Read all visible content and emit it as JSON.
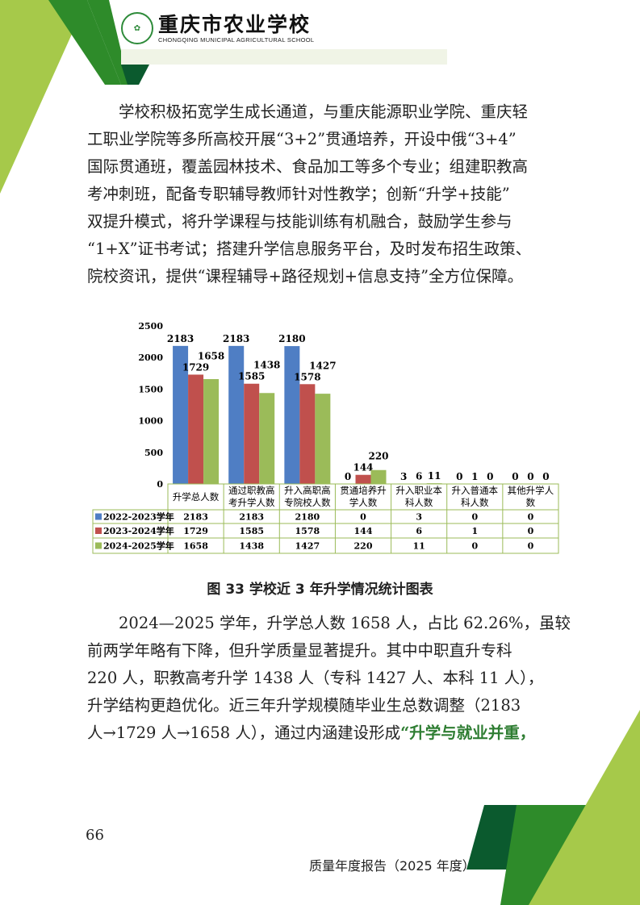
{
  "header": {
    "school_cn": "重庆市农业学校",
    "school_en": "CHONGQING MUNICIPAL AGRICULTURAL SCHOOL"
  },
  "para1": [
    "学校积极拓宽学生成长通道，与重庆能源职业学院、重庆轻",
    "工职业学院等多所高校开展“3+2”贯通培养，开设中俄“3+4”",
    "国际贯通班，覆盖园林技术、食品加工等多个专业；组建职教高",
    "考冲刺班，配备专职辅导教师针对性教学；创新“升学+技能”",
    "双提升模式，将升学课程与技能训练有机融合，鼓励学生参与",
    "“1+X”证书考试；搭建升学信息服务平台，及时发布招生政策、",
    "院校资讯，提供“课程辅导+路径规划+信息支持”全方位保障。"
  ],
  "chart_data": {
    "type": "bar",
    "categories": [
      "升学总人数",
      "通过职教高考升学人数",
      "升入高职高专院校人数",
      "贯通培养升学人数",
      "升入职业本科人数",
      "升入普通本科人数",
      "其他升学人数"
    ],
    "category_lines": [
      [
        "升学总人数"
      ],
      [
        "通过职教高",
        "考升学人数"
      ],
      [
        "升入高职高",
        "专院校人数"
      ],
      [
        "贯通培养升",
        "学人数"
      ],
      [
        "升入职业本",
        "科人数"
      ],
      [
        "升入普通本",
        "科人数"
      ],
      [
        "其他升学人",
        "数"
      ]
    ],
    "series": [
      {
        "name": "2022-2023学年",
        "color": "#4f7ec4",
        "values": [
          2183,
          2183,
          2180,
          0,
          3,
          0,
          0
        ]
      },
      {
        "name": "2023-2024学年",
        "color": "#c0504d",
        "values": [
          1729,
          1585,
          1578,
          144,
          6,
          1,
          0
        ]
      },
      {
        "name": "2024-2025学年",
        "color": "#9bbb59",
        "values": [
          1658,
          1438,
          1427,
          220,
          11,
          0,
          0
        ]
      }
    ],
    "yticks": [
      0,
      500,
      1000,
      1500,
      2000,
      2500
    ],
    "ylim": [
      0,
      2500
    ],
    "legend": "data-table"
  },
  "caption": "图  33    学校近 3 年升学情况统计图表",
  "para2": {
    "lines": [
      "2024—2025 学年，升学总人数 1658 人，占比 62.26%，虽较",
      "前两学年略有下降，但升学质量显著提升。其中中职直升专科",
      "220 人，职教高考升学 1438 人（专科 1427 人、本科 11 人），",
      "升学结构更趋优化。近三年升学规模随毕业生总数调整（2183",
      "人→1729 人→1658 人），通过内涵建设形成"
    ],
    "highlight": "“升学与就业并重，"
  },
  "footer": {
    "page": "66",
    "title": "质量年度报告（2025 年度）"
  }
}
